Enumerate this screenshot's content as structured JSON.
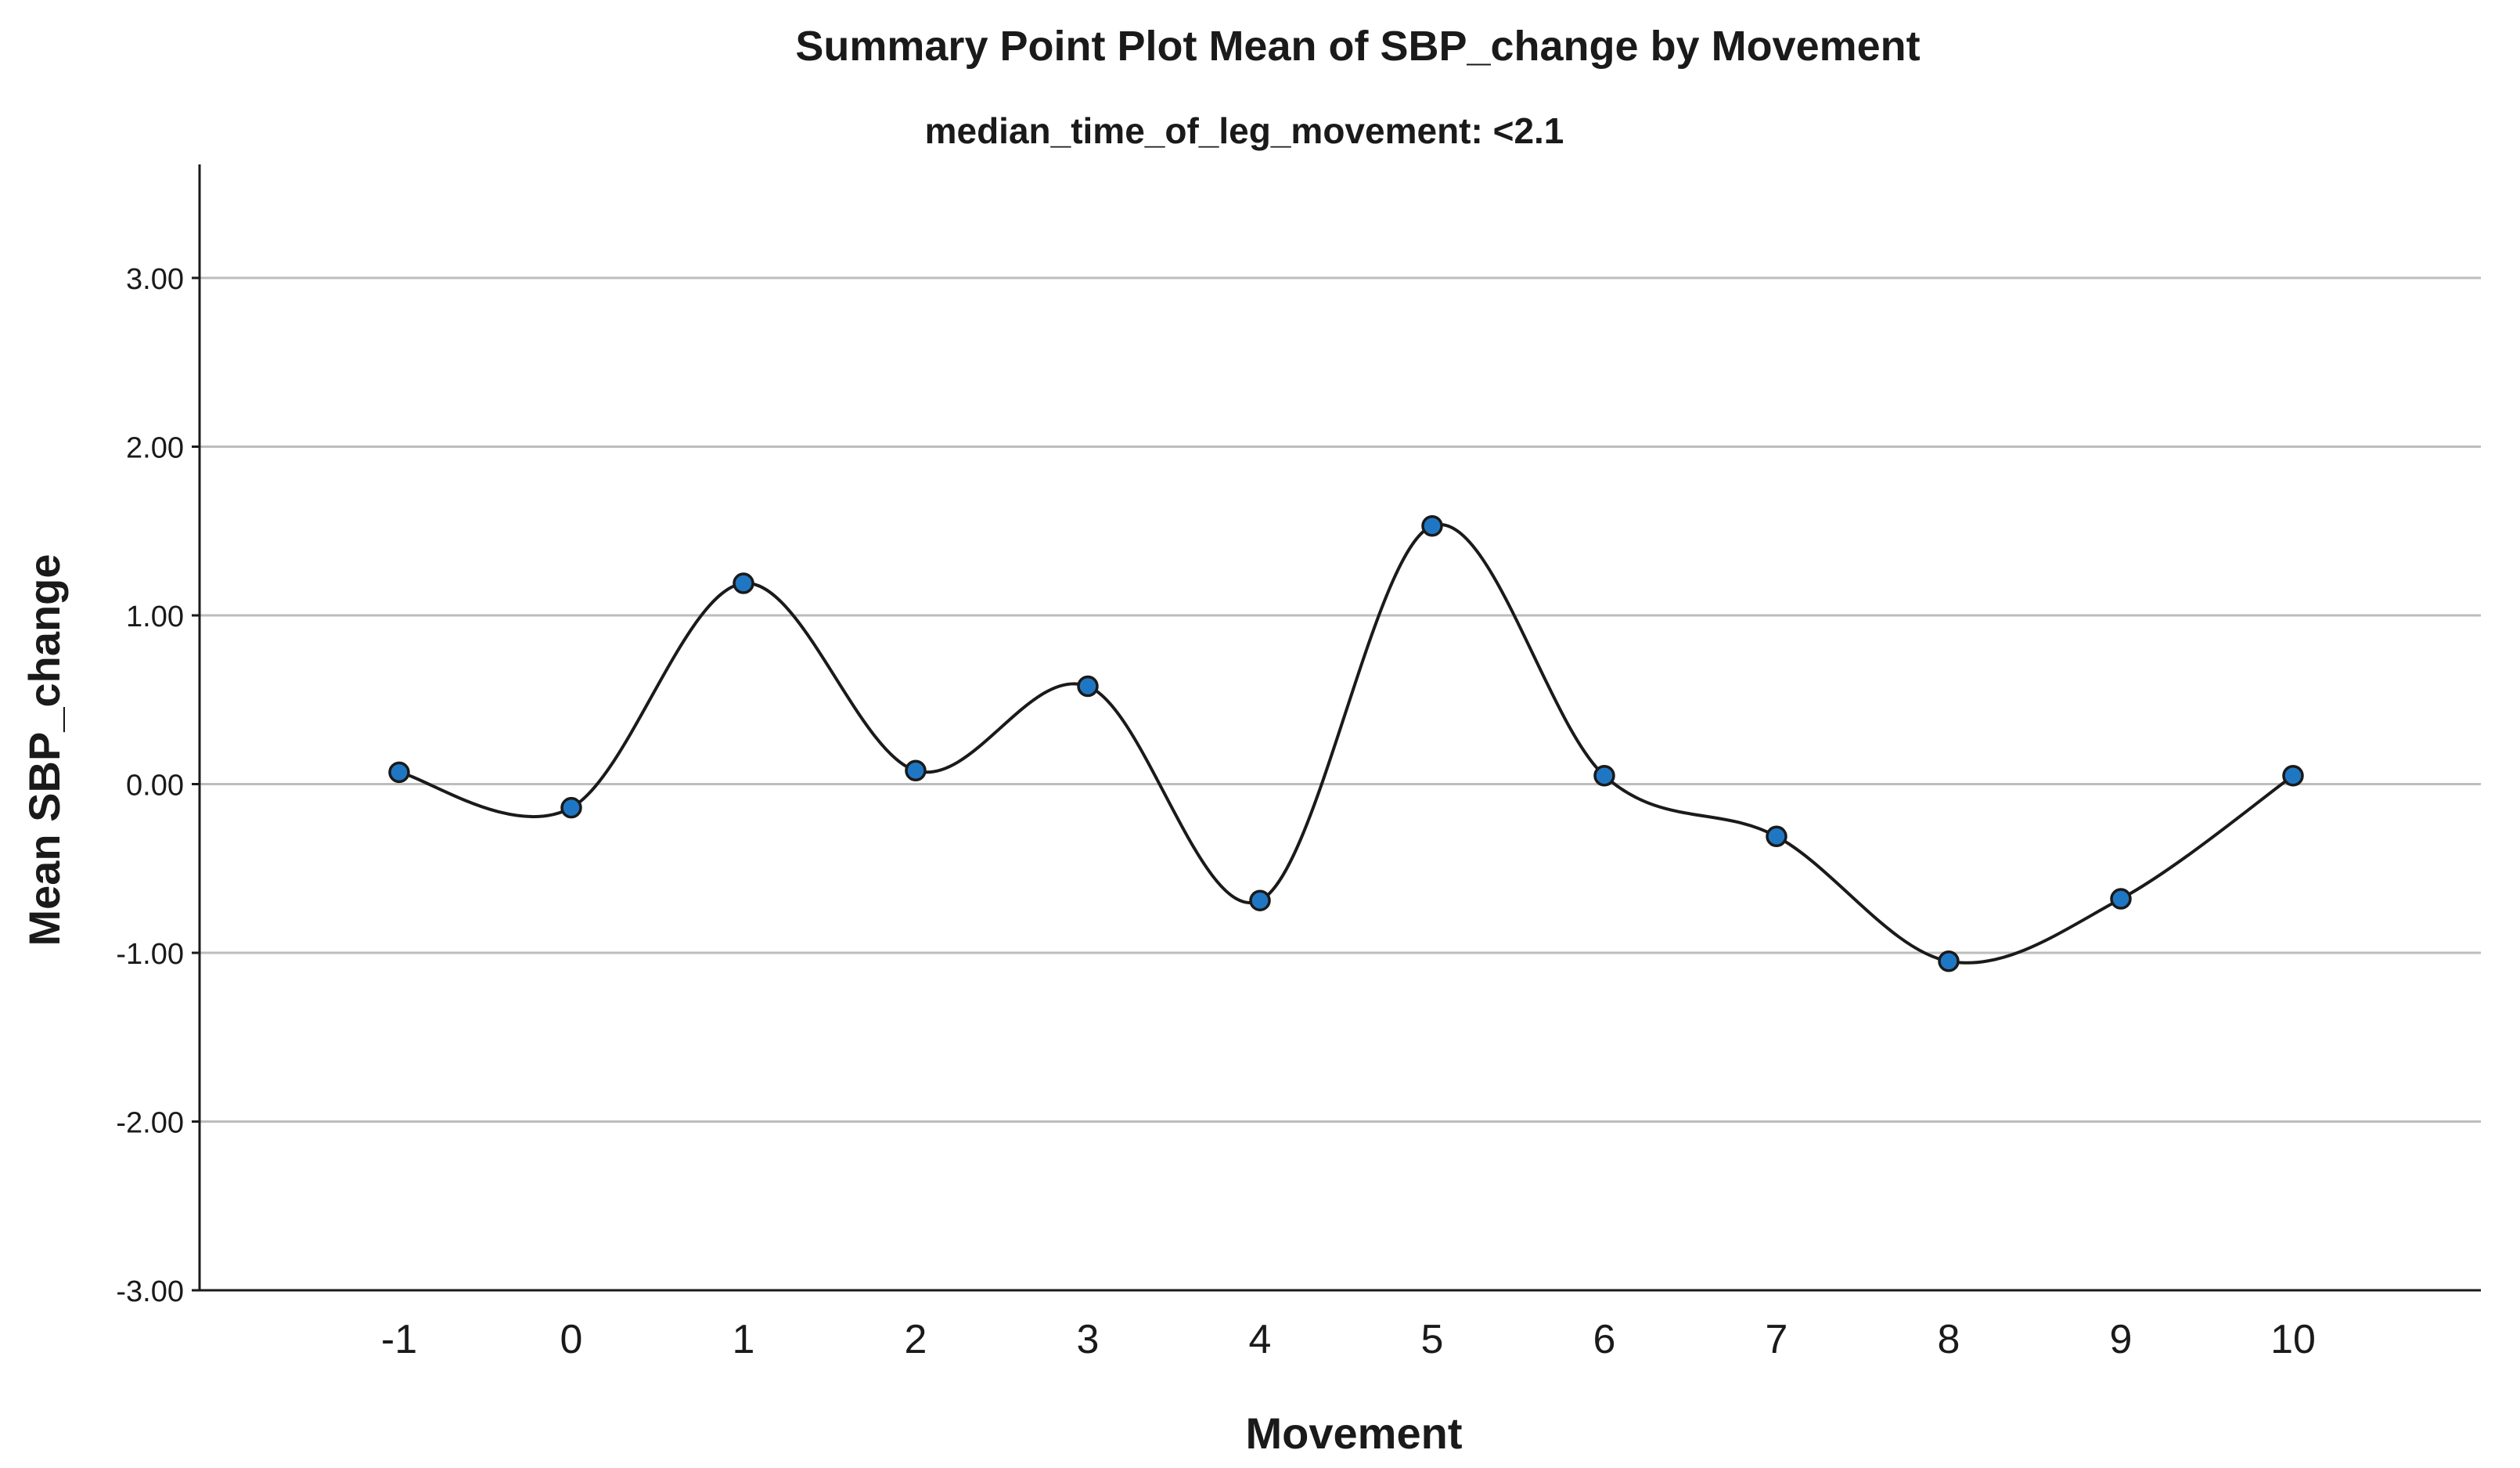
{
  "chart_data": {
    "type": "line",
    "title": "Summary Point Plot Mean of SBP_change by Movement",
    "subtitle": "median_time_of_leg_movement: <2.1",
    "xlabel": "Movement",
    "ylabel": "Mean SBP_change",
    "categories": [
      "-1",
      "0",
      "1",
      "2",
      "3",
      "4",
      "5",
      "6",
      "7",
      "8",
      "9",
      "10"
    ],
    "values": [
      0.07,
      -0.14,
      1.19,
      0.08,
      0.58,
      -0.69,
      1.53,
      0.05,
      -0.31,
      -1.05,
      -0.68,
      0.05
    ],
    "y_ticks": [
      "3.00",
      "2.00",
      "1.00",
      "0.00",
      "-1.00",
      "-2.00",
      "-3.00"
    ],
    "ylim": [
      -3,
      3.6
    ],
    "grid": true,
    "line_style": "smooth",
    "colors": {
      "marker_fill": "#1f77c4",
      "marker_edge": "#1a1a1a",
      "line": "#1a1a1a",
      "grid": "#bdbdbd"
    }
  }
}
